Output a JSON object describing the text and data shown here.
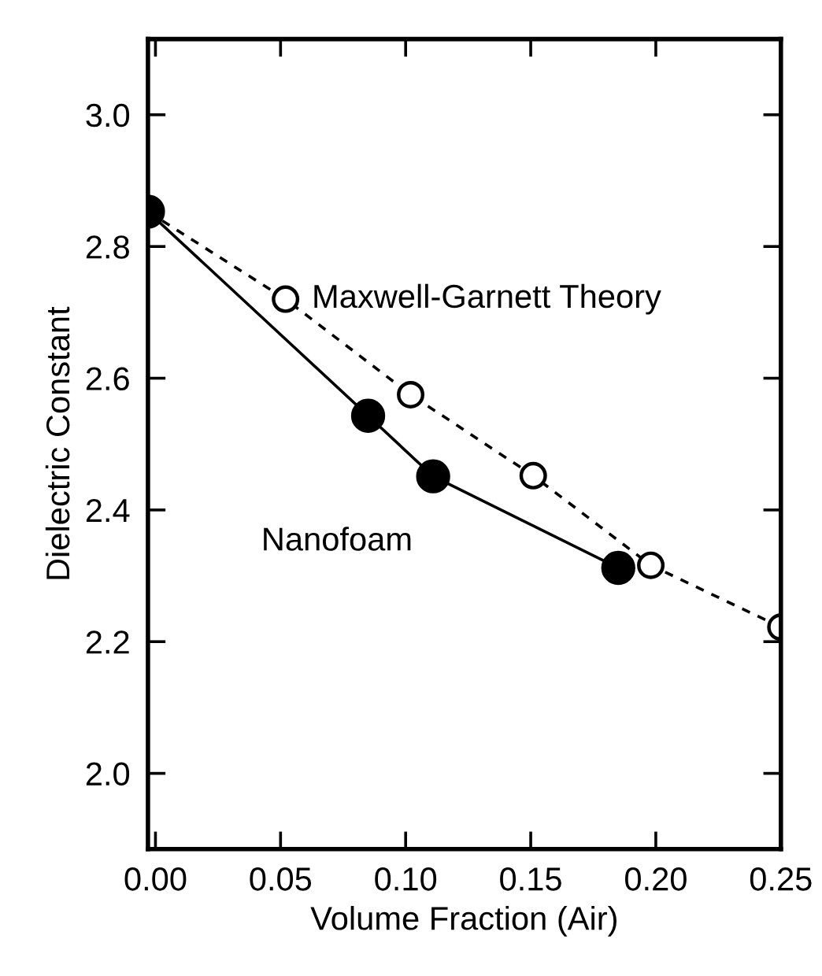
{
  "chart_data": {
    "type": "line",
    "xlabel": "Volume Fraction (Air)",
    "ylabel": "Dielectric Constant",
    "xlim": [
      -0.003,
      0.25
    ],
    "xticks": [
      {
        "value": 0,
        "label": "0.00"
      },
      0.05,
      {
        "value": 0.1,
        "label": "0.10"
      },
      0.15,
      {
        "value": 0.2,
        "label": "0.20"
      },
      0.25
    ],
    "ylim": [
      1.885,
      3.115
    ],
    "yticks": [
      {
        "value": 2,
        "label": "2.0"
      },
      2.2,
      2.4,
      2.6,
      2.8,
      {
        "value": 3,
        "label": "3.0"
      }
    ],
    "grid": false,
    "legend": false,
    "series": [
      {
        "name": "Maxwell-Garnett Theory",
        "color": "#000000",
        "marker": "circle",
        "line_style": "dashed",
        "x": [
          -0.003,
          0.052,
          0.102,
          0.151,
          0.198,
          0.25
        ],
        "values": [
          2.853,
          2.72,
          2.575,
          2.452,
          2.316,
          2.222
        ]
      },
      {
        "name": "Nanofoam",
        "color": "#000000",
        "marker": "circle",
        "line_style": "solid",
        "x": [
          -0.003,
          0.085,
          0.111,
          0.185
        ],
        "values": [
          2.853,
          2.543,
          2.451,
          2.312
        ]
      }
    ]
  }
}
